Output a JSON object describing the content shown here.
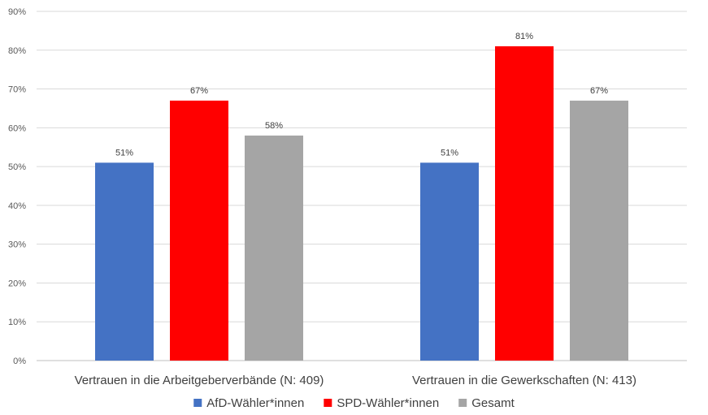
{
  "chart_data": {
    "type": "bar",
    "categories": [
      "Vertrauen in die Arbeitgeberverbände (N: 409)",
      "Vertrauen in die Gewerkschaften (N: 413)"
    ],
    "series": [
      {
        "name": "AfD-Wähler*innen",
        "color": "#4472c4",
        "values": [
          51,
          51
        ]
      },
      {
        "name": "SPD-Wähler*innen",
        "color": "#ff0000",
        "values": [
          67,
          81
        ]
      },
      {
        "name": "Gesamt",
        "color": "#a5a5a5",
        "values": [
          58,
          67
        ]
      }
    ],
    "data_labels": [
      [
        "51%",
        "67%",
        "58%"
      ],
      [
        "51%",
        "81%",
        "67%"
      ]
    ],
    "y_ticks": [
      "0%",
      "10%",
      "20%",
      "30%",
      "40%",
      "50%",
      "60%",
      "70%",
      "80%",
      "90%"
    ],
    "ylim": [
      0,
      90
    ],
    "grid": true,
    "legend_position": "bottom",
    "title": "",
    "xlabel": "",
    "ylabel": ""
  }
}
